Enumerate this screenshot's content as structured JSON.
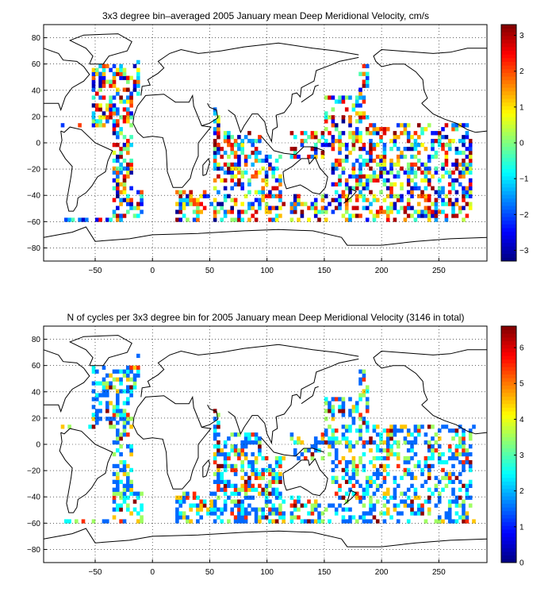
{
  "chart_data": [
    {
      "type": "heatmap",
      "title": "3x3 degree bin–averaged 2005 January mean Deep Meridional Velocity, cm/s",
      "xlim": [
        -95,
        292
      ],
      "ylim": [
        -90,
        90
      ],
      "x_ticks": [
        -50,
        0,
        50,
        100,
        150,
        200,
        250
      ],
      "x_tick_labels": [
        "−50",
        "0",
        "50",
        "100",
        "150",
        "200",
        "250"
      ],
      "y_ticks": [
        80,
        60,
        40,
        20,
        0,
        -20,
        -40,
        -60,
        -80
      ],
      "y_tick_labels": [
        "80",
        "60",
        "40",
        "20",
        "0",
        "−20",
        "−40",
        "−60",
        "−80"
      ],
      "grid": true,
      "bin_size_deg": 3,
      "colormap": "jet",
      "colorbar": {
        "range": [
          -3.3,
          3.3
        ],
        "ticks": [
          3,
          2,
          1,
          0,
          -1,
          -2,
          -3
        ],
        "tick_labels": [
          "3",
          "2",
          "1",
          "0",
          "−1",
          "−2",
          "−3"
        ]
      },
      "ocean_regions": [
        {
          "lon": [
            -80,
            -10
          ],
          "lat": [
            -60,
            70
          ],
          "density": 0.5
        },
        {
          "lon": [
            20,
            115
          ],
          "lat": [
            -60,
            25
          ],
          "density": 0.55
        },
        {
          "lon": [
            120,
            280
          ],
          "lat": [
            -60,
            60
          ],
          "density": 0.45
        }
      ]
    },
    {
      "type": "heatmap",
      "title": "N of cycles per 3x3 degree bin for 2005 January mean Deep Meridional Velocity (3146 in total)",
      "total_cycles": 3146,
      "xlim": [
        -95,
        292
      ],
      "ylim": [
        -90,
        90
      ],
      "x_ticks": [
        -50,
        0,
        50,
        100,
        150,
        200,
        250
      ],
      "x_tick_labels": [
        "−50",
        "0",
        "50",
        "100",
        "150",
        "200",
        "250"
      ],
      "y_ticks": [
        80,
        60,
        40,
        20,
        0,
        -20,
        -40,
        -60,
        -80
      ],
      "y_tick_labels": [
        "80",
        "60",
        "40",
        "20",
        "0",
        "−20",
        "−40",
        "−60",
        "−80"
      ],
      "grid": true,
      "bin_size_deg": 3,
      "colormap": "jet",
      "colorbar": {
        "range": [
          0,
          6.6
        ],
        "ticks": [
          6,
          5,
          4,
          3,
          2,
          1,
          0
        ],
        "tick_labels": [
          "6",
          "5",
          "4",
          "3",
          "2",
          "1",
          "0"
        ]
      },
      "ocean_regions": [
        {
          "lon": [
            -80,
            -10
          ],
          "lat": [
            -60,
            70
          ],
          "density": 0.5
        },
        {
          "lon": [
            20,
            115
          ],
          "lat": [
            -60,
            25
          ],
          "density": 0.55
        },
        {
          "lon": [
            120,
            280
          ],
          "lat": [
            -60,
            60
          ],
          "density": 0.45
        }
      ]
    }
  ]
}
